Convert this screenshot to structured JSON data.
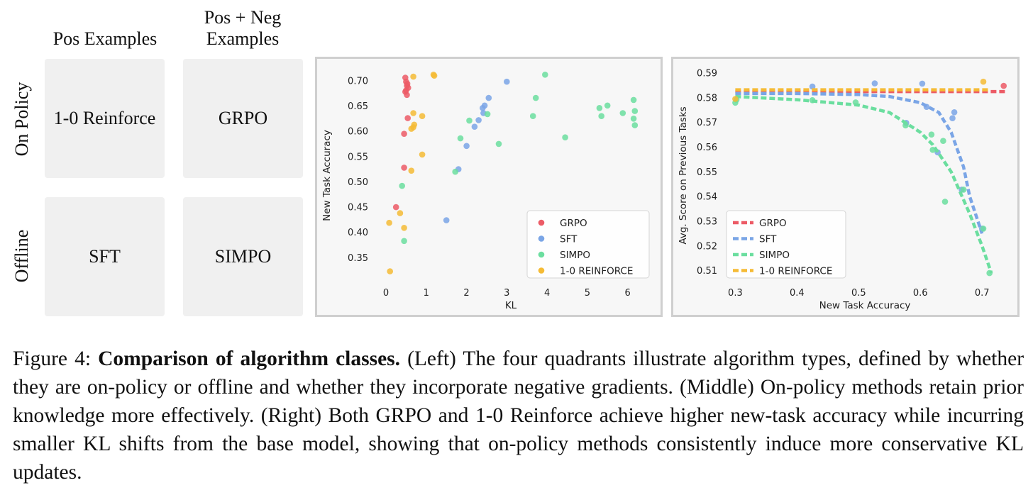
{
  "diagram": {
    "col_headers": [
      "Pos Examples",
      "Pos + Neg\nExamples"
    ],
    "row_headers": [
      "On Policy",
      "Offline"
    ],
    "cells": [
      "1-0 Reinforce",
      "GRPO",
      "SFT",
      "SIMPO"
    ]
  },
  "colors": {
    "GRPO": "#ec5b66",
    "SFT": "#7aa5e6",
    "SIMPO": "#6bde9f",
    "REINFORCE": "#f5bb35"
  },
  "chart_data": [
    {
      "type": "scatter",
      "title": "",
      "xlabel": "KL",
      "ylabel": "New Task Accuracy",
      "xlim": [
        -0.3,
        6.5
      ],
      "ylim": [
        0.3,
        0.725
      ],
      "xticks": [
        "0",
        "1",
        "2",
        "3",
        "4",
        "5",
        "6"
      ],
      "xtick_values": [
        0,
        1,
        2,
        3,
        4,
        5,
        6
      ],
      "yticks": [
        "0.35",
        "0.40",
        "0.45",
        "0.50",
        "0.55",
        "0.60",
        "0.65",
        "0.70"
      ],
      "ytick_values": [
        0.35,
        0.4,
        0.45,
        0.5,
        0.55,
        0.6,
        0.65,
        0.7
      ],
      "legend_position": "bottom-right",
      "series": [
        {
          "name": "GRPO",
          "color_key": "GRPO",
          "points": [
            [
              0.48,
              0.706
            ],
            [
              0.5,
              0.698
            ],
            [
              0.52,
              0.69
            ],
            [
              0.55,
              0.686
            ],
            [
              0.48,
              0.678
            ],
            [
              0.52,
              0.672
            ],
            [
              0.5,
              0.681
            ],
            [
              0.53,
              0.694
            ],
            [
              0.54,
              0.626
            ],
            [
              0.45,
              0.595
            ],
            [
              0.45,
              0.528
            ],
            [
              0.25,
              0.45
            ]
          ]
        },
        {
          "name": "SFT",
          "color_key": "SFT",
          "points": [
            [
              3.0,
              0.698
            ],
            [
              2.55,
              0.666
            ],
            [
              2.45,
              0.651
            ],
            [
              2.4,
              0.646
            ],
            [
              2.42,
              0.636
            ],
            [
              2.3,
              0.622
            ],
            [
              2.2,
              0.609
            ],
            [
              2.0,
              0.571
            ],
            [
              1.8,
              0.525
            ],
            [
              1.5,
              0.424
            ]
          ]
        },
        {
          "name": "SIMPO",
          "color_key": "SIMPO",
          "points": [
            [
              3.95,
              0.712
            ],
            [
              3.72,
              0.666
            ],
            [
              3.65,
              0.63
            ],
            [
              2.52,
              0.634
            ],
            [
              2.07,
              0.621
            ],
            [
              1.85,
              0.586
            ],
            [
              2.8,
              0.575
            ],
            [
              1.72,
              0.52
            ],
            [
              0.4,
              0.492
            ],
            [
              4.45,
              0.588
            ],
            [
              5.3,
              0.646
            ],
            [
              5.5,
              0.651
            ],
            [
              5.35,
              0.63
            ],
            [
              5.88,
              0.636
            ],
            [
              6.15,
              0.662
            ],
            [
              6.18,
              0.64
            ],
            [
              6.15,
              0.625
            ],
            [
              6.18,
              0.612
            ],
            [
              0.45,
              0.383
            ]
          ]
        },
        {
          "name": "1-0 REINFORCE",
          "color_key": "REINFORCE",
          "points": [
            [
              0.68,
              0.708
            ],
            [
              1.2,
              0.71
            ],
            [
              1.18,
              0.712
            ],
            [
              0.68,
              0.636
            ],
            [
              0.9,
              0.63
            ],
            [
              0.7,
              0.613
            ],
            [
              0.68,
              0.608
            ],
            [
              0.63,
              0.605
            ],
            [
              0.9,
              0.554
            ],
            [
              0.63,
              0.522
            ],
            [
              0.35,
              0.438
            ],
            [
              0.45,
              0.409
            ],
            [
              0.08,
              0.419
            ],
            [
              0.1,
              0.323
            ]
          ]
        }
      ]
    },
    {
      "type": "line",
      "title": "",
      "xlabel": "New Task Accuracy",
      "ylabel": "Avg. Score on Previous Tasks",
      "xlim": [
        0.28,
        0.74
      ],
      "ylim": [
        0.505,
        0.592
      ],
      "xticks": [
        "0.3",
        "0.4",
        "0.5",
        "0.6",
        "0.7"
      ],
      "xtick_values": [
        0.3,
        0.4,
        0.5,
        0.6,
        0.7
      ],
      "yticks": [
        "0.51",
        "0.52",
        "0.53",
        "0.54",
        "0.55",
        "0.56",
        "0.57",
        "0.58",
        "0.59"
      ],
      "ytick_values": [
        0.51,
        0.52,
        0.53,
        0.54,
        0.55,
        0.56,
        0.57,
        0.58,
        0.59
      ],
      "legend_position": "bottom-left",
      "series": [
        {
          "name": "GRPO",
          "color_key": "GRPO",
          "fit_line": [
            [
              0.3,
              0.5825
            ],
            [
              0.74,
              0.5825
            ]
          ],
          "points": [
            [
              0.735,
              0.5848
            ]
          ]
        },
        {
          "name": "SFT",
          "color_key": "SFT",
          "fit_line": [
            [
              0.3,
              0.5817
            ],
            [
              0.4,
              0.5817
            ],
            [
              0.5,
              0.5813
            ],
            [
              0.55,
              0.5805
            ],
            [
              0.6,
              0.578
            ],
            [
              0.63,
              0.574
            ],
            [
              0.65,
              0.566
            ],
            [
              0.67,
              0.552
            ],
            [
              0.68,
              0.54
            ],
            [
              0.7,
              0.525
            ]
          ],
          "points": [
            [
              0.526,
              0.5858
            ],
            [
              0.603,
              0.5857
            ],
            [
              0.425,
              0.5845
            ],
            [
              0.61,
              0.5763
            ],
            [
              0.655,
              0.5741
            ],
            [
              0.652,
              0.5717
            ],
            [
              0.577,
              0.5698
            ],
            [
              0.628,
              0.5579
            ],
            [
              0.667,
              0.5428
            ],
            [
              0.7,
              0.527
            ]
          ]
        },
        {
          "name": "SIMPO",
          "color_key": "SIMPO",
          "fit_line": [
            [
              0.3,
              0.5805
            ],
            [
              0.4,
              0.5792
            ],
            [
              0.5,
              0.577
            ],
            [
              0.55,
              0.574
            ],
            [
              0.6,
              0.566
            ],
            [
              0.62,
              0.561
            ],
            [
              0.65,
              0.55
            ],
            [
              0.68,
              0.533
            ],
            [
              0.7,
              0.52
            ],
            [
              0.715,
              0.509
            ]
          ],
          "points": [
            [
              0.3,
              0.578
            ],
            [
              0.302,
              0.5792
            ],
            [
              0.425,
              0.579
            ],
            [
              0.495,
              0.5781
            ],
            [
              0.576,
              0.5688
            ],
            [
              0.618,
              0.5651
            ],
            [
              0.637,
              0.5625
            ],
            [
              0.62,
              0.5589
            ],
            [
              0.67,
              0.5428
            ],
            [
              0.64,
              0.5379
            ],
            [
              0.702,
              0.527
            ],
            [
              0.712,
              0.509
            ]
          ]
        },
        {
          "name": "1-0 REINFORCE",
          "color_key": "REINFORCE",
          "fit_line": [
            [
              0.3,
              0.5832
            ],
            [
              0.71,
              0.5832
            ]
          ],
          "points": [
            [
              0.3,
              0.5795
            ],
            [
              0.702,
              0.5865
            ]
          ]
        }
      ]
    }
  ],
  "caption": {
    "label": "Figure 4:",
    "bold": "Comparison of algorithm classes.",
    "text": "(Left) The four quadrants illustrate algorithm types, defined by whether they are on-policy or offline and whether they incorporate negative gradients. (Middle) On-policy methods retain prior knowledge more effectively. (Right) Both GRPO and 1-0 Reinforce achieve higher new-task accuracy while incurring smaller KL shifts from the base model, showing that on-policy methods consistently induce more conservative KL updates."
  }
}
